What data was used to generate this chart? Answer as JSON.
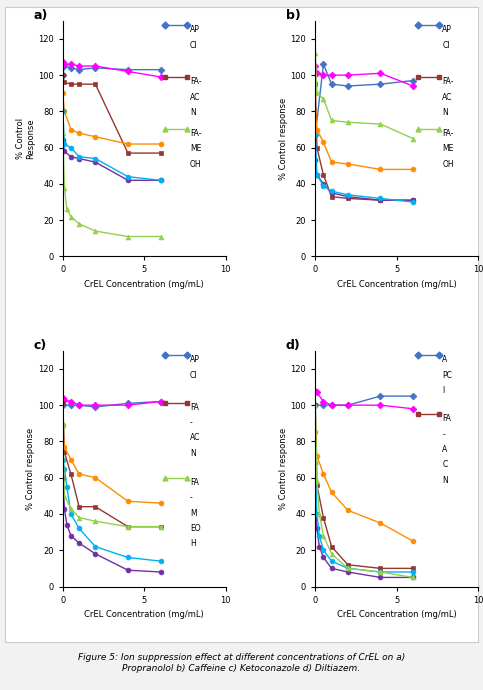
{
  "subplot_labels": [
    "a)",
    "b)",
    "c)",
    "d)"
  ],
  "xlabel": "CrEL Concentration (mg/mL)",
  "ylabels": [
    "% Control\nResponse",
    "% Control response",
    "% Control response",
    "% Control response"
  ],
  "background": "#f0f0f0",
  "plots": {
    "a": {
      "series": [
        {
          "color": "#4472C4",
          "marker": "D",
          "x": [
            0,
            0.1,
            0.5,
            1,
            2,
            4,
            6
          ],
          "y": [
            100,
            105,
            104,
            103,
            104,
            103,
            103
          ]
        },
        {
          "color": "#FF00FF",
          "marker": "D",
          "x": [
            0,
            0.1,
            0.5,
            1,
            2,
            4,
            6
          ],
          "y": [
            107,
            106,
            106,
            105,
            105,
            102,
            99
          ]
        },
        {
          "color": "#963634",
          "marker": "s",
          "x": [
            0,
            0.1,
            0.5,
            1,
            2,
            4,
            6
          ],
          "y": [
            100,
            96,
            95,
            95,
            95,
            57,
            57
          ]
        },
        {
          "color": "#FF8C00",
          "marker": "o",
          "x": [
            0,
            0.1,
            0.5,
            1,
            2,
            4,
            6
          ],
          "y": [
            90,
            80,
            70,
            68,
            66,
            62,
            62
          ]
        },
        {
          "color": "#7030A0",
          "marker": "o",
          "x": [
            0,
            0.1,
            0.5,
            1,
            2,
            4,
            6
          ],
          "y": [
            64,
            58,
            55,
            54,
            52,
            42,
            42
          ]
        },
        {
          "color": "#00B0F0",
          "marker": "o",
          "x": [
            0,
            0.1,
            0.5,
            1,
            2,
            4,
            6
          ],
          "y": [
            80,
            62,
            60,
            55,
            54,
            44,
            42
          ]
        },
        {
          "color": "#92D050",
          "marker": "^",
          "x": [
            0,
            0.1,
            0.25,
            0.5,
            1,
            2,
            4,
            6
          ],
          "y": [
            68,
            38,
            26,
            22,
            18,
            14,
            11,
            11
          ]
        }
      ],
      "legend": [
        {
          "label": "AP\nCI",
          "color": "#4472C4",
          "marker": "D"
        },
        {
          "label": "FA-\nAC\nN",
          "color": "#963634",
          "marker": "s"
        },
        {
          "label": "FA-\nME\nOH",
          "color": "#92D050",
          "marker": "^"
        }
      ]
    },
    "b": {
      "series": [
        {
          "color": "#4472C4",
          "marker": "D",
          "x": [
            0,
            0.5,
            1,
            2,
            4,
            6
          ],
          "y": [
            67,
            106,
            95,
            94,
            95,
            97
          ]
        },
        {
          "color": "#FF00FF",
          "marker": "D",
          "x": [
            0,
            0.1,
            0.5,
            1,
            2,
            4,
            6
          ],
          "y": [
            105,
            101,
            100,
            100,
            100,
            101,
            94
          ]
        },
        {
          "color": "#963634",
          "marker": "s",
          "x": [
            0,
            0.1,
            0.5,
            1,
            2,
            4,
            6
          ],
          "y": [
            95,
            60,
            45,
            33,
            32,
            31,
            31
          ]
        },
        {
          "color": "#FF8C00",
          "marker": "o",
          "x": [
            0,
            0.1,
            0.5,
            1,
            2,
            4,
            6
          ],
          "y": [
            80,
            70,
            63,
            52,
            51,
            48,
            48
          ]
        },
        {
          "color": "#7030A0",
          "marker": "o",
          "x": [
            0,
            0.1,
            0.5,
            1,
            2,
            4,
            6
          ],
          "y": [
            53,
            45,
            40,
            35,
            33,
            31,
            31
          ]
        },
        {
          "color": "#00B0F0",
          "marker": "o",
          "x": [
            0,
            0.1,
            0.5,
            1,
            2,
            4,
            6
          ],
          "y": [
            67,
            45,
            39,
            36,
            34,
            32,
            30
          ]
        },
        {
          "color": "#92D050",
          "marker": "^",
          "x": [
            0,
            0.1,
            0.5,
            1,
            2,
            4,
            6
          ],
          "y": [
            112,
            90,
            87,
            75,
            74,
            73,
            65
          ]
        }
      ],
      "legend": [
        {
          "label": "AP\nCI",
          "color": "#4472C4",
          "marker": "D"
        },
        {
          "label": "FA-\nAC\nN",
          "color": "#963634",
          "marker": "s"
        },
        {
          "label": "FA-\nME\nOH",
          "color": "#92D050",
          "marker": "^"
        }
      ]
    },
    "c": {
      "series": [
        {
          "color": "#4472C4",
          "marker": "D",
          "x": [
            0,
            0.5,
            1,
            2,
            4,
            6
          ],
          "y": [
            100,
            100,
            100,
            99,
            101,
            102
          ]
        },
        {
          "color": "#FF00FF",
          "marker": "D",
          "x": [
            0,
            0.1,
            0.5,
            1,
            2,
            4,
            6
          ],
          "y": [
            104,
            103,
            102,
            100,
            100,
            100,
            102
          ]
        },
        {
          "color": "#963634",
          "marker": "s",
          "x": [
            0,
            0.1,
            0.5,
            1,
            2,
            4,
            6
          ],
          "y": [
            101,
            74,
            62,
            44,
            44,
            33,
            33
          ]
        },
        {
          "color": "#FF8C00",
          "marker": "o",
          "x": [
            0,
            0.1,
            0.5,
            1,
            2,
            4,
            6
          ],
          "y": [
            89,
            77,
            70,
            62,
            60,
            47,
            46
          ]
        },
        {
          "color": "#7030A0",
          "marker": "o",
          "x": [
            0,
            0.1,
            0.25,
            0.5,
            1,
            2,
            4,
            6
          ],
          "y": [
            60,
            43,
            34,
            28,
            24,
            18,
            9,
            8
          ]
        },
        {
          "color": "#00B0F0",
          "marker": "o",
          "x": [
            0,
            0.1,
            0.25,
            0.5,
            1,
            2,
            4,
            6
          ],
          "y": [
            70,
            65,
            55,
            40,
            32,
            22,
            16,
            14
          ]
        },
        {
          "color": "#92D050",
          "marker": "^",
          "x": [
            0,
            0.1,
            0.5,
            1,
            2,
            4,
            6
          ],
          "y": [
            89,
            50,
            43,
            38,
            36,
            33,
            33
          ]
        }
      ],
      "legend": [
        {
          "label": "AP\nCI",
          "color": "#4472C4",
          "marker": "D"
        },
        {
          "label": "FA\n-\nAC\nN",
          "color": "#963634",
          "marker": "s"
        },
        {
          "label": "FA\n-\nM\nEO\nH",
          "color": "#92D050",
          "marker": "^"
        }
      ]
    },
    "d": {
      "series": [
        {
          "color": "#4472C4",
          "marker": "D",
          "x": [
            0,
            0.5,
            1,
            2,
            4,
            6
          ],
          "y": [
            100,
            100,
            100,
            100,
            105,
            105
          ]
        },
        {
          "color": "#FF00FF",
          "marker": "D",
          "x": [
            0,
            0.1,
            0.5,
            1,
            2,
            4,
            6
          ],
          "y": [
            108,
            107,
            102,
            100,
            100,
            100,
            98
          ]
        },
        {
          "color": "#963634",
          "marker": "s",
          "x": [
            0,
            0.1,
            0.5,
            1,
            2,
            4,
            6
          ],
          "y": [
            100,
            56,
            38,
            22,
            12,
            10,
            10
          ]
        },
        {
          "color": "#FF8C00",
          "marker": "o",
          "x": [
            0,
            0.1,
            0.5,
            1,
            2,
            4,
            6
          ],
          "y": [
            85,
            72,
            62,
            52,
            42,
            35,
            25
          ]
        },
        {
          "color": "#7030A0",
          "marker": "o",
          "x": [
            0,
            0.1,
            0.25,
            0.5,
            1,
            2,
            4,
            6
          ],
          "y": [
            56,
            32,
            22,
            16,
            10,
            8,
            5,
            5
          ]
        },
        {
          "color": "#00B0F0",
          "marker": "o",
          "x": [
            0,
            0.1,
            0.25,
            0.5,
            1,
            2,
            4,
            6
          ],
          "y": [
            68,
            40,
            28,
            20,
            14,
            10,
            8,
            8
          ]
        },
        {
          "color": "#92D050",
          "marker": "^",
          "x": [
            0,
            0.1,
            0.25,
            0.5,
            1,
            2,
            4,
            6
          ],
          "y": [
            100,
            58,
            40,
            28,
            18,
            10,
            8,
            5
          ]
        }
      ],
      "legend": [
        {
          "label": "A\nPC\nI",
          "color": "#4472C4",
          "marker": "D"
        },
        {
          "label": "FA\n-\nA\nC\nN",
          "color": "#963634",
          "marker": "s"
        }
      ]
    }
  }
}
